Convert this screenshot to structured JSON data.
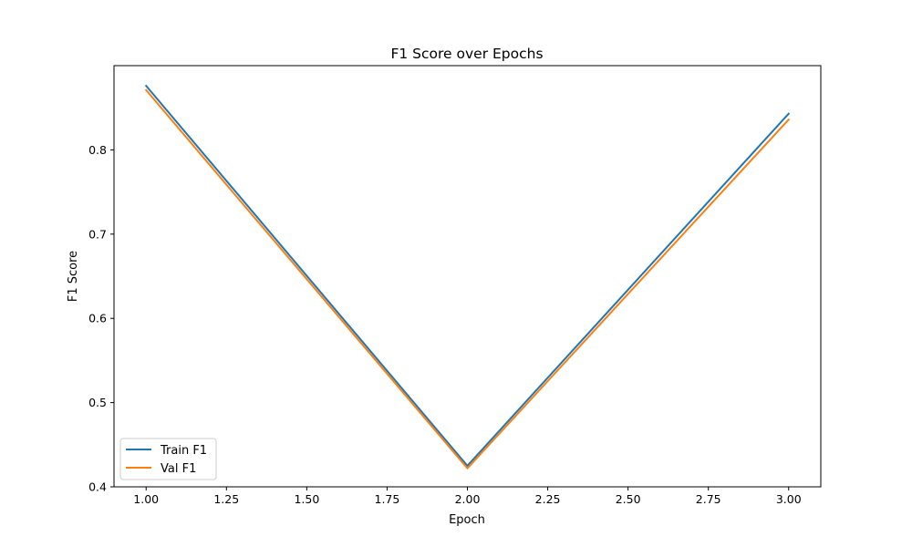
{
  "chart_data": {
    "type": "line",
    "title": "F1 Score over Epochs",
    "xlabel": "Epoch",
    "ylabel": "F1 Score",
    "x": [
      1,
      2,
      3
    ],
    "xlim": [
      0.9,
      3.1
    ],
    "ylim": [
      0.4,
      0.9
    ],
    "x_ticks": [
      1.0,
      1.25,
      1.5,
      1.75,
      2.0,
      2.25,
      2.5,
      2.75,
      3.0
    ],
    "x_tick_labels": [
      "1.00",
      "1.25",
      "1.50",
      "1.75",
      "2.00",
      "2.25",
      "2.50",
      "2.75",
      "3.00"
    ],
    "y_ticks": [
      0.4,
      0.5,
      0.6,
      0.7,
      0.8
    ],
    "y_tick_labels": [
      "0.4",
      "0.5",
      "0.6",
      "0.7",
      "0.8"
    ],
    "grid": false,
    "legend_position": "lower-left",
    "series": [
      {
        "name": "Train F1",
        "values": [
          0.876,
          0.425,
          0.843
        ],
        "color": "#1f77b4"
      },
      {
        "name": "Val F1",
        "values": [
          0.871,
          0.422,
          0.836
        ],
        "color": "#ff7f0e"
      }
    ]
  }
}
